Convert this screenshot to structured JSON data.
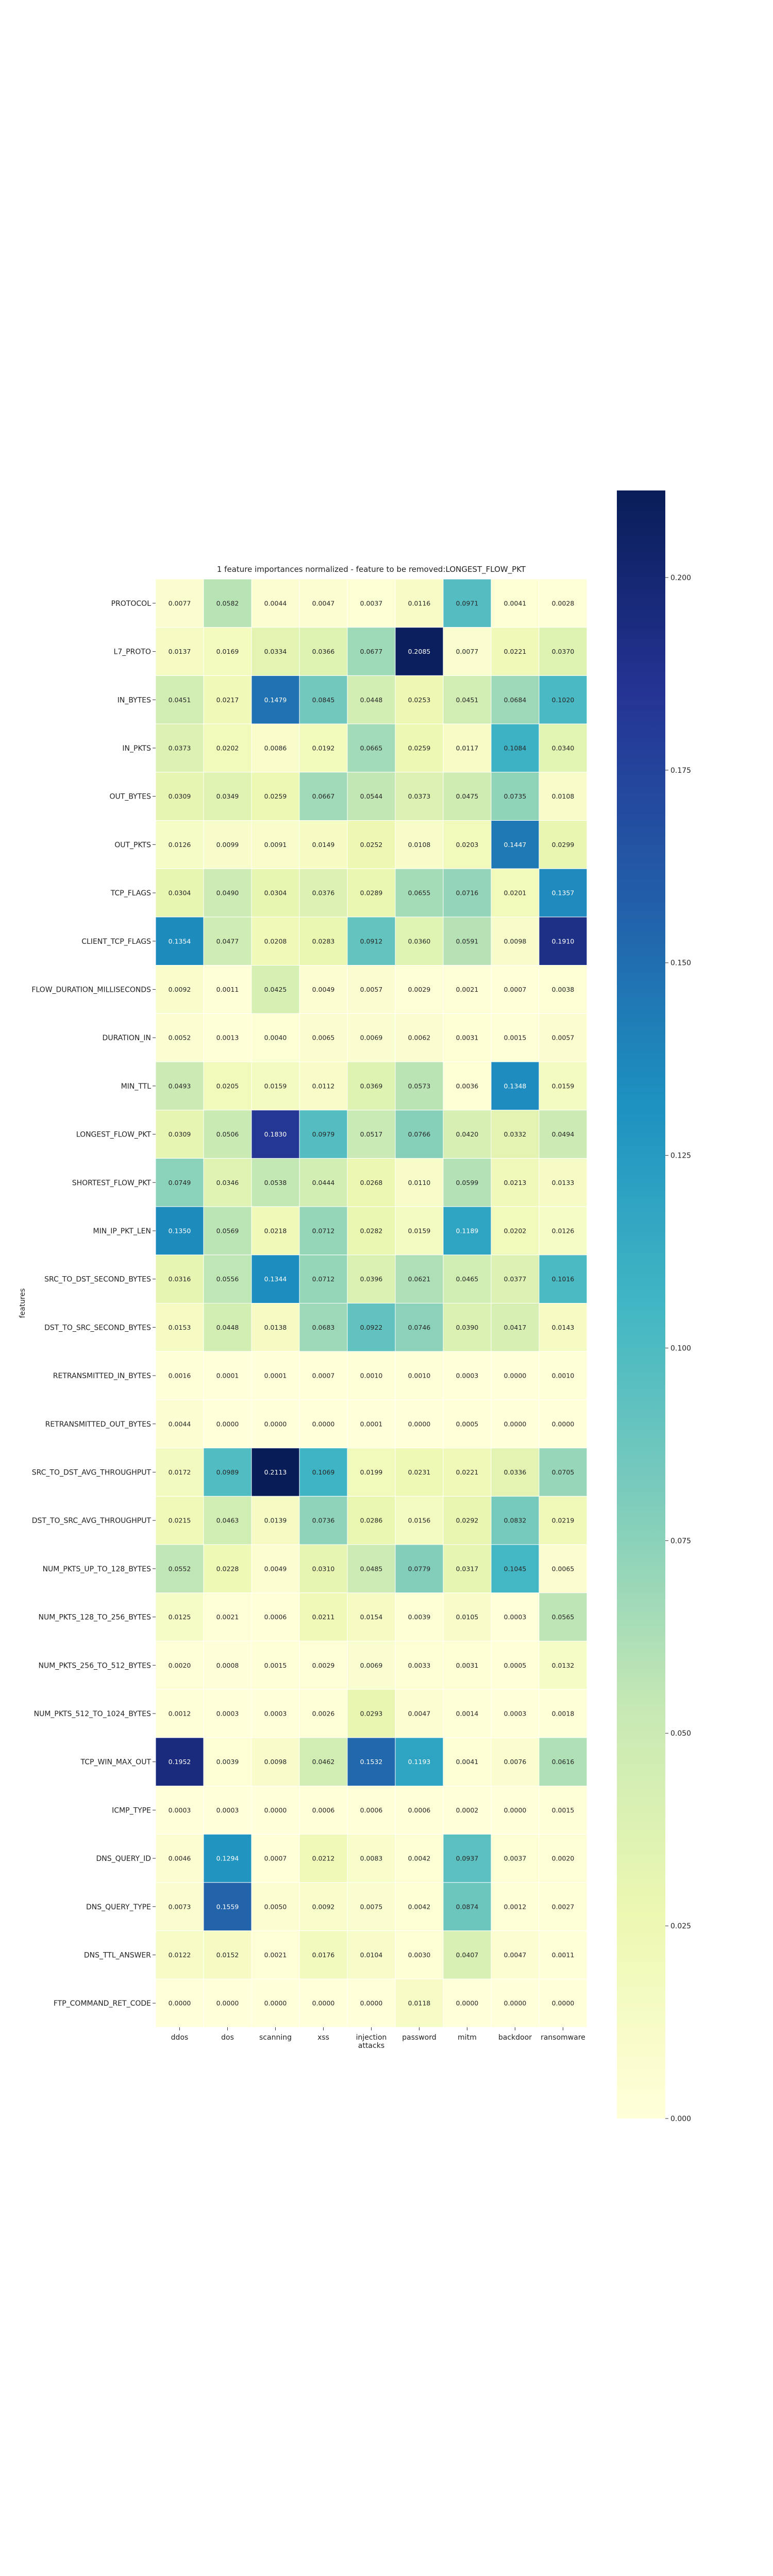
{
  "chart_data": {
    "type": "heatmap",
    "title": "1 feature importances normalized - feature to be removed:LONGEST_FLOW_PKT",
    "ylabel": "features",
    "xlabel": "",
    "columns": [
      "ddos",
      "dos",
      "scanning",
      "xss",
      "injection\nattacks",
      "password",
      "mitm",
      "backdoor",
      "ransomware"
    ],
    "rows": [
      "PROTOCOL",
      "L7_PROTO",
      "IN_BYTES",
      "IN_PKTS",
      "OUT_BYTES",
      "OUT_PKTS",
      "TCP_FLAGS",
      "CLIENT_TCP_FLAGS",
      "FLOW_DURATION_MILLISECONDS",
      "DURATION_IN",
      "MIN_TTL",
      "LONGEST_FLOW_PKT",
      "SHORTEST_FLOW_PKT",
      "MIN_IP_PKT_LEN",
      "SRC_TO_DST_SECOND_BYTES",
      "DST_TO_SRC_SECOND_BYTES",
      "RETRANSMITTED_IN_BYTES",
      "RETRANSMITTED_OUT_BYTES",
      "SRC_TO_DST_AVG_THROUGHPUT",
      "DST_TO_SRC_AVG_THROUGHPUT",
      "NUM_PKTS_UP_TO_128_BYTES",
      "NUM_PKTS_128_TO_256_BYTES",
      "NUM_PKTS_256_TO_512_BYTES",
      "NUM_PKTS_512_TO_1024_BYTES",
      "TCP_WIN_MAX_OUT",
      "ICMP_TYPE",
      "DNS_QUERY_ID",
      "DNS_QUERY_TYPE",
      "DNS_TTL_ANSWER",
      "FTP_COMMAND_RET_CODE"
    ],
    "values": [
      [
        "0.0077",
        "0.0582",
        "0.0044",
        "0.0047",
        "0.0037",
        "0.0116",
        "0.0971",
        "0.0041",
        "0.0028"
      ],
      [
        "0.0137",
        "0.0169",
        "0.0334",
        "0.0366",
        "0.0677",
        "0.2085",
        "0.0077",
        "0.0221",
        "0.0370"
      ],
      [
        "0.0451",
        "0.0217",
        "0.1479",
        "0.0845",
        "0.0448",
        "0.0253",
        "0.0451",
        "0.0684",
        "0.1020"
      ],
      [
        "0.0373",
        "0.0202",
        "0.0086",
        "0.0192",
        "0.0665",
        "0.0259",
        "0.0117",
        "0.1084",
        "0.0340"
      ],
      [
        "0.0309",
        "0.0349",
        "0.0259",
        "0.0667",
        "0.0544",
        "0.0373",
        "0.0475",
        "0.0735",
        "0.0108"
      ],
      [
        "0.0126",
        "0.0099",
        "0.0091",
        "0.0149",
        "0.0252",
        "0.0108",
        "0.0203",
        "0.1447",
        "0.0299"
      ],
      [
        "0.0304",
        "0.0490",
        "0.0304",
        "0.0376",
        "0.0289",
        "0.0655",
        "0.0716",
        "0.0201",
        "0.1357"
      ],
      [
        "0.1354",
        "0.0477",
        "0.0208",
        "0.0283",
        "0.0912",
        "0.0360",
        "0.0591",
        "0.0098",
        "0.1910"
      ],
      [
        "0.0092",
        "0.0011",
        "0.0425",
        "0.0049",
        "0.0057",
        "0.0029",
        "0.0021",
        "0.0007",
        "0.0038"
      ],
      [
        "0.0052",
        "0.0013",
        "0.0040",
        "0.0065",
        "0.0069",
        "0.0062",
        "0.0031",
        "0.0015",
        "0.0057"
      ],
      [
        "0.0493",
        "0.0205",
        "0.0159",
        "0.0112",
        "0.0369",
        "0.0573",
        "0.0036",
        "0.1348",
        "0.0159"
      ],
      [
        "0.0309",
        "0.0506",
        "0.1830",
        "0.0979",
        "0.0517",
        "0.0766",
        "0.0420",
        "0.0332",
        "0.0494"
      ],
      [
        "0.0749",
        "0.0346",
        "0.0538",
        "0.0444",
        "0.0268",
        "0.0110",
        "0.0599",
        "0.0213",
        "0.0133"
      ],
      [
        "0.1350",
        "0.0569",
        "0.0218",
        "0.0712",
        "0.0282",
        "0.0159",
        "0.1189",
        "0.0202",
        "0.0126"
      ],
      [
        "0.0316",
        "0.0556",
        "0.1344",
        "0.0712",
        "0.0396",
        "0.0621",
        "0.0465",
        "0.0377",
        "0.1016"
      ],
      [
        "0.0153",
        "0.0448",
        "0.0138",
        "0.0683",
        "0.0922",
        "0.0746",
        "0.0390",
        "0.0417",
        "0.0143"
      ],
      [
        "0.0016",
        "0.0001",
        "0.0001",
        "0.0007",
        "0.0010",
        "0.0010",
        "0.0003",
        "0.0000",
        "0.0010"
      ],
      [
        "0.0044",
        "0.0000",
        "0.0000",
        "0.0000",
        "0.0001",
        "0.0000",
        "0.0005",
        "0.0000",
        "0.0000"
      ],
      [
        "0.0172",
        "0.0989",
        "0.2113",
        "0.1069",
        "0.0199",
        "0.0231",
        "0.0221",
        "0.0336",
        "0.0705"
      ],
      [
        "0.0215",
        "0.0463",
        "0.0139",
        "0.0736",
        "0.0286",
        "0.0156",
        "0.0292",
        "0.0832",
        "0.0219"
      ],
      [
        "0.0552",
        "0.0228",
        "0.0049",
        "0.0310",
        "0.0485",
        "0.0779",
        "0.0317",
        "0.1045",
        "0.0065"
      ],
      [
        "0.0125",
        "0.0021",
        "0.0006",
        "0.0211",
        "0.0154",
        "0.0039",
        "0.0105",
        "0.0003",
        "0.0565"
      ],
      [
        "0.0020",
        "0.0008",
        "0.0015",
        "0.0029",
        "0.0069",
        "0.0033",
        "0.0031",
        "0.0005",
        "0.0132"
      ],
      [
        "0.0012",
        "0.0003",
        "0.0003",
        "0.0026",
        "0.0293",
        "0.0047",
        "0.0014",
        "0.0003",
        "0.0018"
      ],
      [
        "0.1952",
        "0.0039",
        "0.0098",
        "0.0462",
        "0.1532",
        "0.1193",
        "0.0041",
        "0.0076",
        "0.0616"
      ],
      [
        "0.0003",
        "0.0003",
        "0.0000",
        "0.0006",
        "0.0006",
        "0.0006",
        "0.0002",
        "0.0000",
        "0.0015"
      ],
      [
        "0.0046",
        "0.1294",
        "0.0007",
        "0.0212",
        "0.0083",
        "0.0042",
        "0.0937",
        "0.0037",
        "0.0020"
      ],
      [
        "0.0073",
        "0.1559",
        "0.0050",
        "0.0092",
        "0.0075",
        "0.0042",
        "0.0874",
        "0.0012",
        "0.0027"
      ],
      [
        "0.0122",
        "0.0152",
        "0.0021",
        "0.0176",
        "0.0104",
        "0.0030",
        "0.0407",
        "0.0047",
        "0.0011"
      ],
      [
        "0.0000",
        "0.0000",
        "0.0000",
        "0.0000",
        "0.0000",
        "0.0118",
        "0.0000",
        "0.0000",
        "0.0000"
      ]
    ],
    "colorbar": {
      "colormap": "YlGnBu",
      "vmin": 0,
      "vmax": 0.2113,
      "ticks": [
        "0.000",
        "0.025",
        "0.050",
        "0.075",
        "0.100",
        "0.125",
        "0.150",
        "0.175",
        "0.200"
      ]
    },
    "colors": {
      "low": "#ffffd9",
      "high": "#081d58",
      "cell_border": "#ffffff"
    }
  }
}
